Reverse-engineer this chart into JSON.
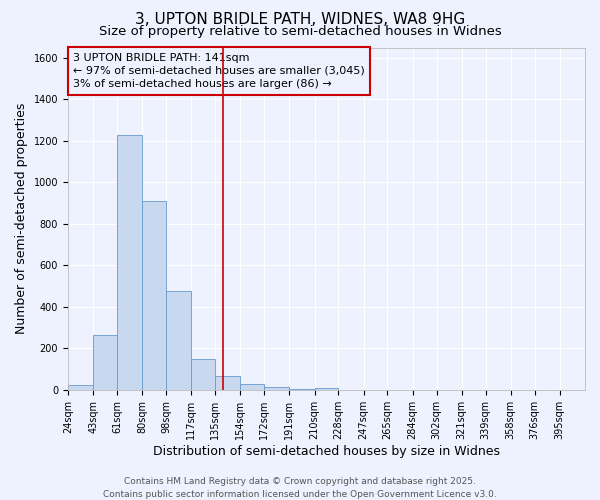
{
  "title_line1": "3, UPTON BRIDLE PATH, WIDNES, WA8 9HG",
  "title_line2": "Size of property relative to semi-detached houses in Widnes",
  "xlabel": "Distribution of semi-detached houses by size in Widnes",
  "ylabel": "Number of semi-detached properties",
  "bin_labels": [
    "24sqm",
    "43sqm",
    "61sqm",
    "80sqm",
    "98sqm",
    "117sqm",
    "135sqm",
    "154sqm",
    "172sqm",
    "191sqm",
    "210sqm",
    "228sqm",
    "247sqm",
    "265sqm",
    "284sqm",
    "302sqm",
    "321sqm",
    "339sqm",
    "358sqm",
    "376sqm",
    "395sqm"
  ],
  "bin_edges": [
    24,
    43,
    61,
    80,
    98,
    117,
    135,
    154,
    172,
    191,
    210,
    228,
    247,
    265,
    284,
    302,
    321,
    339,
    358,
    376,
    395
  ],
  "bar_heights": [
    25,
    265,
    1230,
    910,
    475,
    150,
    65,
    30,
    15,
    5,
    10,
    0,
    0,
    0,
    0,
    0,
    0,
    0,
    0,
    0,
    0
  ],
  "bar_color": "#c8d8ee",
  "bar_edge_color": "#6699cc",
  "red_line_x": 141,
  "ylim": [
    0,
    1650
  ],
  "yticks": [
    0,
    200,
    400,
    600,
    800,
    1000,
    1200,
    1400,
    1600
  ],
  "annotation_title": "3 UPTON BRIDLE PATH: 141sqm",
  "annotation_line1": "← 97% of semi-detached houses are smaller (3,045)",
  "annotation_line2": "3% of semi-detached houses are larger (86) →",
  "annotation_box_color": "#cc0000",
  "footer_line1": "Contains HM Land Registry data © Crown copyright and database right 2025.",
  "footer_line2": "Contains public sector information licensed under the Open Government Licence v3.0.",
  "background_color": "#eef2ff",
  "grid_color": "#ffffff",
  "title_fontsize": 11,
  "subtitle_fontsize": 9.5,
  "axis_label_fontsize": 9,
  "tick_fontsize": 7,
  "annotation_fontsize": 8,
  "footer_fontsize": 6.5
}
